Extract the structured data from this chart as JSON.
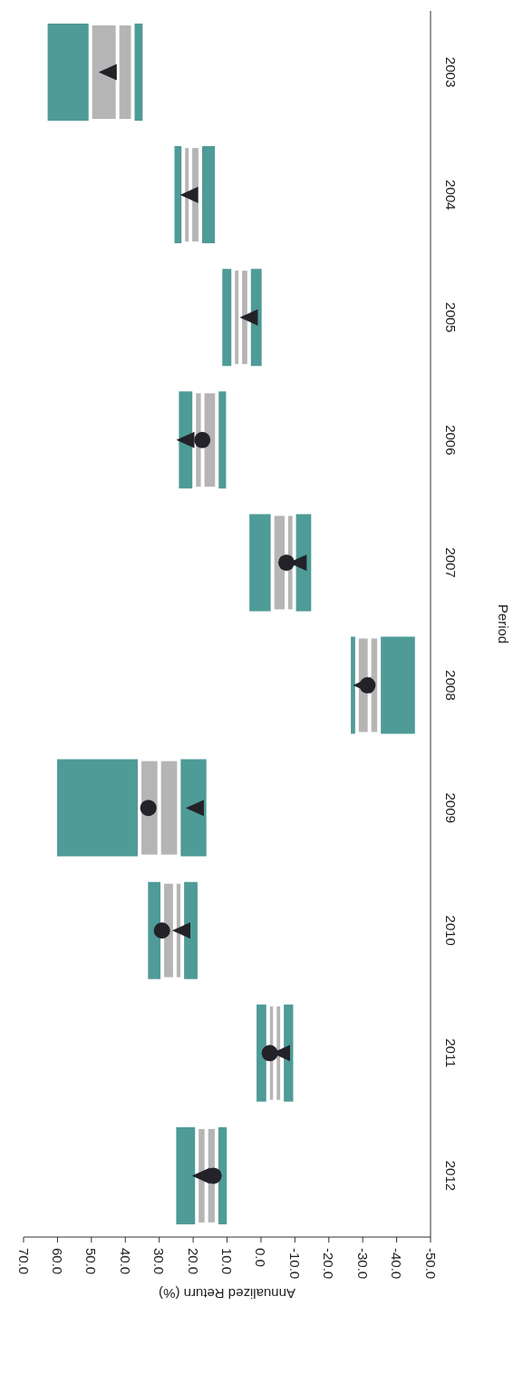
{
  "chart_data": {
    "type": "box",
    "orientation": "horizontal",
    "xlabel": "Annualized Return (%)",
    "ylabel": "Period",
    "categories": [
      "2003",
      "2004",
      "2005",
      "2006",
      "2007",
      "2008",
      "2009",
      "2010",
      "2011",
      "2012"
    ],
    "series": [
      {
        "color": "#b5b5b5",
        "boxes": [
          {
            "low": 34.9,
            "q1": 37.8,
            "median": 42.3,
            "q3": 50.3,
            "high": 62.9
          },
          {
            "low": 13.6,
            "q1": 17.9,
            "median": 20.8,
            "q3": 22.9,
            "high": 25.5
          },
          {
            "low": -0.2,
            "q1": 3.5,
            "median": 6.1,
            "q3": 8.2,
            "high": 11.4
          },
          {
            "low": 10.3,
            "q1": 13.0,
            "median": 17.2,
            "q3": 19.7,
            "high": 24.2
          },
          {
            "low": -14.8,
            "q1": -9.8,
            "median": -7.5,
            "q3": -3.4,
            "high": 3.4
          },
          {
            "low": -45.4,
            "q1": -34.8,
            "median": -32.0,
            "q3": -28.3,
            "high": -26.5
          },
          {
            "low": 16.1,
            "q1": 24.2,
            "median": 30.0,
            "q3": 35.8,
            "high": 60.1
          },
          {
            "low": 18.7,
            "q1": 23.2,
            "median": 25.4,
            "q3": 29.1,
            "high": 33.3
          },
          {
            "low": -9.5,
            "q1": -6.2,
            "median": -4.1,
            "q3": -2.1,
            "high": 1.3
          },
          {
            "low": 10.1,
            "q1": 13.1,
            "median": 16.1,
            "q3": 18.9,
            "high": 25.0
          }
        ]
      },
      {
        "type": "scatter",
        "marker": "circle",
        "color": "#222228",
        "values": [
          null,
          null,
          null,
          17.3,
          -7.5,
          -31.4,
          33.2,
          29.2,
          -2.6,
          14.0
        ]
      },
      {
        "type": "scatter",
        "marker": "triangle",
        "color": "#222228",
        "values": [
          45.2,
          21.2,
          3.6,
          22.3,
          -10.8,
          -29.8,
          19.5,
          23.5,
          -5.9,
          17.7
        ]
      }
    ],
    "xlim": [
      70,
      -50
    ],
    "xticks": [
      {
        "value": 70,
        "label": "70.0"
      },
      {
        "value": 60,
        "label": "60.0"
      },
      {
        "value": 50,
        "label": "50.0"
      },
      {
        "value": 40,
        "label": "40.0"
      },
      {
        "value": 30,
        "label": "30.0"
      },
      {
        "value": 20,
        "label": "20.0"
      },
      {
        "value": 10,
        "label": "10.0"
      },
      {
        "value": 0,
        "label": "0.0"
      },
      {
        "value": -10,
        "label": "-10.0"
      },
      {
        "value": -20,
        "label": "-20.0"
      },
      {
        "value": -30,
        "label": "-30.0"
      },
      {
        "value": -40,
        "label": "-40.0"
      },
      {
        "value": -50,
        "label": "-50.0"
      }
    ]
  }
}
